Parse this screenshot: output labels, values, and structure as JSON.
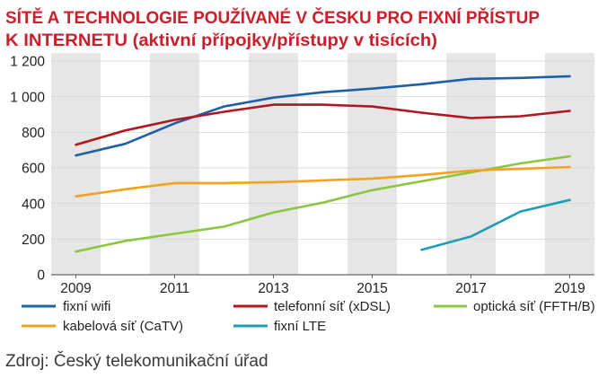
{
  "colors": {
    "title": "#c9202c",
    "band": "#e6e6e6",
    "grid": "#cfcfcf",
    "axis": "#666666"
  },
  "chart_data": {
    "type": "line",
    "title": [
      "SÍTĚ A TECHNOLOGIE POUŽÍVANÉ V ČESKU PRO FIXNÍ PŘÍSTUP",
      "K INTERNETU (aktivní přípojky/přístupy v tisících)"
    ],
    "x": [
      2009,
      2010,
      2011,
      2012,
      2013,
      2014,
      2015,
      2016,
      2017,
      2018,
      2019
    ],
    "xlim": [
      2008.5,
      2019.5
    ],
    "ylim": [
      0,
      1200
    ],
    "xticks": [
      {
        "value": 2009,
        "label": "2009"
      },
      {
        "value": 2011,
        "label": "2011"
      },
      {
        "value": 2013,
        "label": "2013"
      },
      {
        "value": 2015,
        "label": "2015"
      },
      {
        "value": 2017,
        "label": "2017"
      },
      {
        "value": 2019,
        "label": "2019"
      }
    ],
    "yticks": [
      {
        "value": 0,
        "label": "0"
      },
      {
        "value": 200,
        "label": "200"
      },
      {
        "value": 400,
        "label": "400"
      },
      {
        "value": 600,
        "label": "600"
      },
      {
        "value": 800,
        "label": "800"
      },
      {
        "value": 1000,
        "label": "1 000"
      },
      {
        "value": 1200,
        "label": "1 200"
      }
    ],
    "grid": true,
    "shaded_years": [
      2009,
      2011,
      2013,
      2015,
      2017,
      2019
    ],
    "legend": "bottom",
    "series": [
      {
        "name": "fixní wifi",
        "color": "#1f5fa8",
        "values": [
          670,
          735,
          850,
          945,
          995,
          1025,
          1045,
          1070,
          1100,
          1105,
          1115
        ]
      },
      {
        "name": "telefonní síť (xDSL)",
        "color": "#b0171f",
        "values": [
          730,
          810,
          870,
          915,
          955,
          955,
          945,
          910,
          880,
          890,
          920
        ]
      },
      {
        "name": "optická síť (FFTH/B)",
        "color": "#8cc540",
        "values": [
          130,
          190,
          230,
          270,
          350,
          405,
          475,
          525,
          575,
          625,
          665
        ]
      },
      {
        "name": "kabelová síť (CaTV)",
        "color": "#f4a11d",
        "values": [
          440,
          480,
          515,
          515,
          520,
          530,
          540,
          560,
          585,
          595,
          605
        ]
      },
      {
        "name": "fixní LTE",
        "color": "#1c9cb5",
        "values": [
          null,
          null,
          null,
          null,
          null,
          null,
          null,
          140,
          215,
          355,
          420
        ]
      }
    ]
  },
  "source": "Zdroj: Český telekomunikační úřad"
}
